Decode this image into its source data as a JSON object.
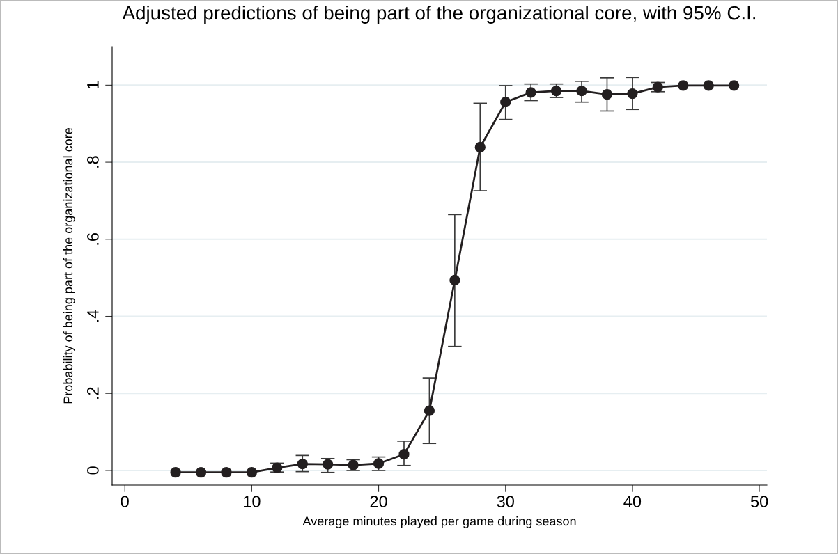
{
  "chart_data": {
    "type": "line",
    "title": "Adjusted predictions of being part of the organizational core, with 95% C.I.",
    "xlabel": "Average minutes played per game during season",
    "ylabel": "Probability of being part of the organizational core",
    "x": [
      4,
      6,
      8,
      10,
      12,
      14,
      16,
      18,
      20,
      22,
      24,
      26,
      28,
      30,
      32,
      34,
      36,
      38,
      40,
      42,
      44,
      46,
      48
    ],
    "series": [
      {
        "color": "#231f20",
        "values": [
          -0.005,
          -0.005,
          -0.005,
          -0.005,
          0.007,
          0.017,
          0.016,
          0.014,
          0.018,
          0.042,
          0.155,
          0.494,
          0.839,
          0.956,
          0.981,
          0.985,
          0.985,
          0.976,
          0.978,
          0.995,
          0.999,
          0.999,
          0.999
        ],
        "errors": [
          null,
          null,
          null,
          null,
          [
            -0.004,
            0.019
          ],
          [
            -0.003,
            0.039
          ],
          [
            -0.005,
            0.031
          ],
          [
            0.0,
            0.028
          ],
          [
            0.0,
            0.035
          ],
          [
            0.013,
            0.076
          ],
          [
            0.07,
            0.24
          ],
          [
            0.322,
            0.664
          ],
          [
            0.726,
            0.953
          ],
          [
            0.911,
            0.999
          ],
          [
            0.96,
            1.003
          ],
          [
            0.968,
            1.003
          ],
          [
            0.956,
            1.01
          ],
          [
            0.933,
            1.019
          ],
          [
            0.937,
            1.02
          ],
          [
            0.983,
            1.007
          ],
          null,
          null,
          null
        ]
      }
    ],
    "xlim": [
      -1,
      50.6
    ],
    "xticks": [
      0,
      10,
      20,
      30,
      40,
      50
    ],
    "ylim": [
      -0.038,
      1.1
    ],
    "yticks": [
      {
        "value": 0,
        "label": "0"
      },
      {
        "value": 0.2,
        "label": ".2"
      },
      {
        "value": 0.4,
        "label": ".4"
      },
      {
        "value": 0.6,
        "label": ".6"
      },
      {
        "value": 0.8,
        "label": ".8"
      },
      {
        "value": 1,
        "label": "1"
      }
    ],
    "grid": "y",
    "marker": "circle",
    "line_style": "solid",
    "legend": false
  }
}
